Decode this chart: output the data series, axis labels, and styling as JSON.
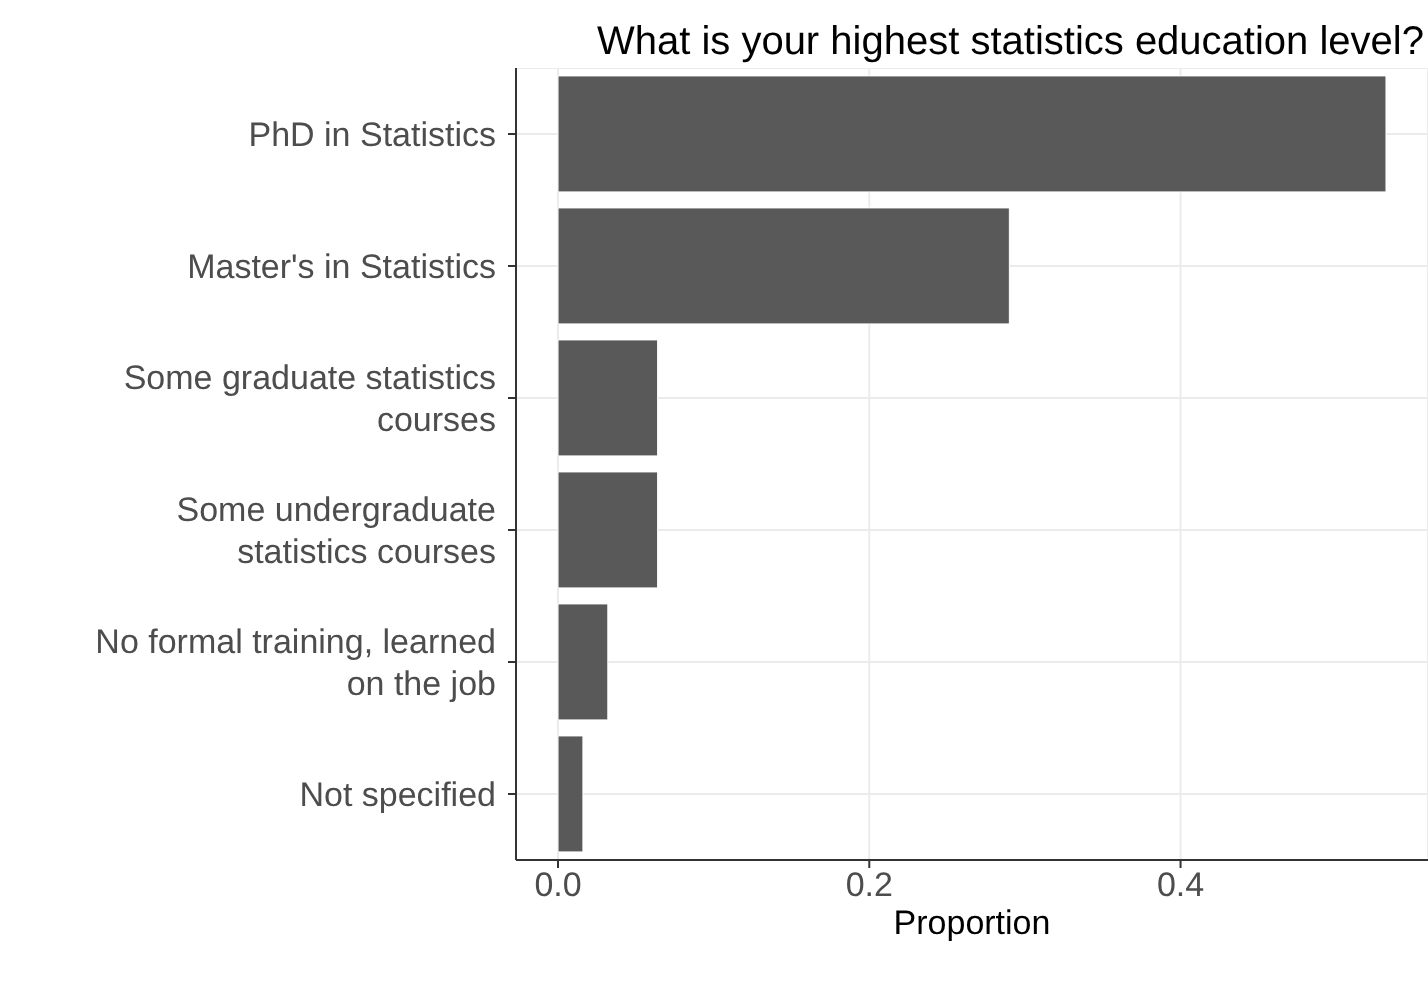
{
  "chart_data": {
    "type": "bar",
    "orientation": "horizontal",
    "title": "What is your highest statistics education level?",
    "xlabel": "Proportion",
    "categories": [
      "PhD in Statistics",
      "Master's in Statistics",
      "Some graduate statistics courses",
      "Some undergraduate statistics courses",
      "No formal training, learned on the job",
      "Not specified"
    ],
    "values": [
      0.532,
      0.29,
      0.064,
      0.064,
      0.032,
      0.016
    ],
    "color": "#595959",
    "xlim": [
      -0.027,
      0.559
    ],
    "xticks": [
      {
        "value": 0,
        "label": "0.0"
      },
      {
        "value": 0.2,
        "label": "0.2"
      },
      {
        "value": 0.4,
        "label": "0.4"
      }
    ],
    "grid": true
  }
}
